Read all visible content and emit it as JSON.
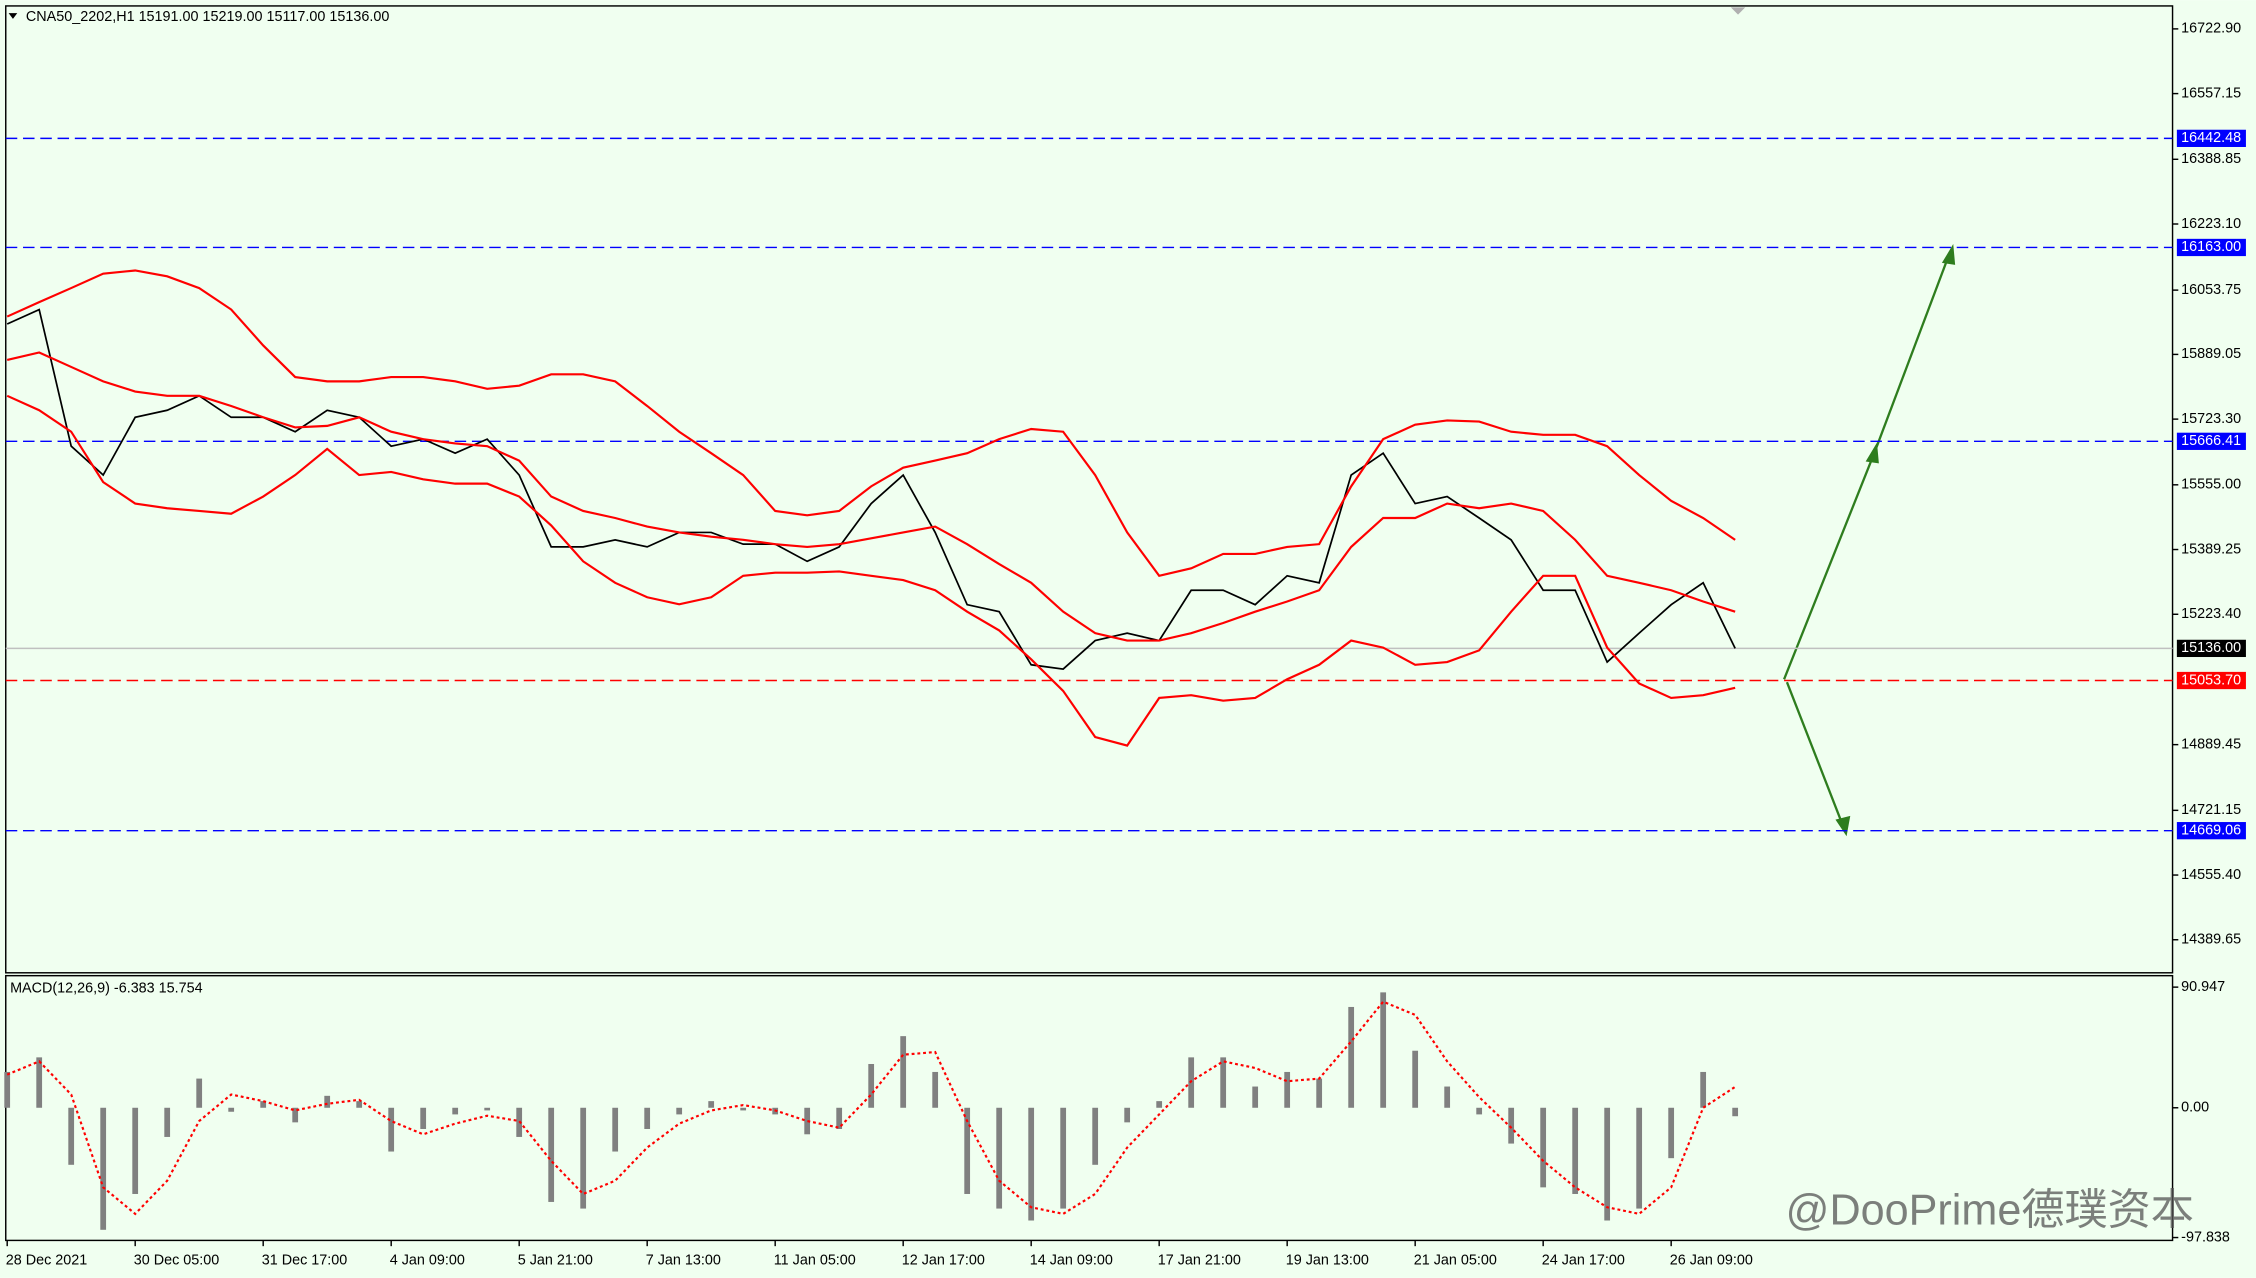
{
  "chart_data": [
    {
      "type": "line",
      "title": "CNA50_2202,H1  15191.00 15219.00 15117.00 15136.00",
      "categories": [
        "28 Dec 2021",
        null,
        null,
        null,
        "30 Dec 05:00",
        null,
        null,
        null,
        "31 Dec 17:00",
        null,
        null,
        null,
        "4 Jan 09:00",
        null,
        null,
        null,
        "5 Jan 21:00",
        null,
        null,
        null,
        "7 Jan 13:00",
        null,
        null,
        null,
        "11 Jan 05:00",
        null,
        null,
        null,
        "12 Jan 17:00",
        null,
        null,
        null,
        "14 Jan 09:00",
        null,
        null,
        null,
        "17 Jan 21:00",
        null,
        null,
        null,
        "19 Jan 13:00",
        null,
        null,
        null,
        "21 Jan 05:00",
        null,
        null,
        null,
        "24 Jan 17:00",
        null,
        null,
        null,
        "26 Jan 09:00",
        null,
        null
      ],
      "series": [
        {
          "color": "#000000",
          "dash": "solid",
          "values": [
            15967,
            16004,
            15654,
            15580,
            15728,
            15746,
            15783,
            15728,
            15728,
            15691,
            15746,
            15728,
            15654,
            15672,
            15636,
            15672,
            15580,
            15396,
            15396,
            15414,
            15396,
            15433,
            15433,
            15403,
            15403,
            15359,
            15396,
            15507,
            15580,
            15433,
            15248,
            15230,
            15094,
            15083,
            15156,
            15175,
            15156,
            15285,
            15285,
            15248,
            15322,
            15304,
            15580,
            15636,
            15507,
            15525,
            15470,
            15414,
            15285,
            15285,
            15101,
            15175,
            15248,
            15304,
            15136
          ]
        },
        {
          "color": "#ff0000",
          "dash": "solid",
          "values": [
            15986,
            16023,
            16059,
            16096,
            16104,
            16089,
            16059,
            16004,
            15912,
            15831,
            15820,
            15820,
            15831,
            15831,
            15820,
            15801,
            15809,
            15838,
            15838,
            15820,
            15757,
            15691,
            15636,
            15580,
            15488,
            15477,
            15488,
            15551,
            15599,
            15617,
            15636,
            15672,
            15698,
            15691,
            15580,
            15433,
            15322,
            15341,
            15378,
            15378,
            15396,
            15403,
            15551,
            15672,
            15709,
            15720,
            15717,
            15691,
            15683,
            15683,
            15654,
            15580,
            15514,
            15470,
            15414
          ]
        },
        {
          "color": "#ff0000",
          "dash": "solid",
          "values": [
            15875,
            15894,
            15857,
            15820,
            15794,
            15783,
            15783,
            15757,
            15728,
            15702,
            15706,
            15728,
            15691,
            15672,
            15661,
            15654,
            15617,
            15525,
            15488,
            15470,
            15448,
            15433,
            15422,
            15414,
            15403,
            15396,
            15403,
            15418,
            15433,
            15448,
            15403,
            15352,
            15304,
            15230,
            15175,
            15156,
            15156,
            15175,
            15201,
            15230,
            15256,
            15285,
            15396,
            15470,
            15470,
            15507,
            15495,
            15507,
            15488,
            15414,
            15322,
            15304,
            15285,
            15256,
            15230
          ]
        },
        {
          "color": "#ff0000",
          "dash": "solid",
          "values": [
            15783,
            15746,
            15691,
            15562,
            15507,
            15495,
            15488,
            15481,
            15525,
            15580,
            15647,
            15580,
            15588,
            15569,
            15558,
            15558,
            15525,
            15451,
            15359,
            15304,
            15267,
            15249,
            15267,
            15322,
            15330,
            15330,
            15333,
            15322,
            15311,
            15285,
            15230,
            15182,
            15108,
            15027,
            14909,
            14887,
            15009,
            15016,
            15002,
            15009,
            15057,
            15094,
            15156,
            15138,
            15094,
            15101,
            15131,
            15230,
            15322,
            15322,
            15138,
            15046,
            15009,
            15016,
            15035
          ]
        }
      ],
      "ylim": [
        14305,
        16778
      ],
      "yticks": [
        {
          "value": 16722.9,
          "label": "16722.90"
        },
        16557.15,
        16388.85,
        {
          "value": 16223.1,
          "label": "16223.10"
        },
        16053.75,
        15889.05,
        {
          "value": 15723.3,
          "label": "15723.30"
        },
        {
          "value": 15555,
          "label": "15555.00"
        },
        15389.25,
        {
          "value": 15223.4,
          "label": "15223.40"
        },
        14889.45,
        14721.15,
        {
          "value": 14555.4,
          "label": "14555.40"
        },
        14389.65
      ],
      "levels": [
        {
          "value": 16442.48,
          "color": "#0000ff",
          "line_color": "#0000ff",
          "dash": "dashed"
        },
        {
          "value": 16163,
          "label": "16163.00",
          "color": "#0000ff",
          "line_color": "#0000ff",
          "dash": "dashed"
        },
        {
          "value": 15666.41,
          "color": "#0000ff",
          "line_color": "#0000ff",
          "dash": "dashed"
        },
        {
          "value": 15136,
          "label": "15136.00",
          "color": "#000000",
          "line_color": "#c0c0c0",
          "dash": "solid"
        },
        {
          "value": 15053.7,
          "label": "15053.70",
          "color": "#ff0000",
          "line_color": "#ff0000",
          "dash": "dashed"
        },
        {
          "value": 14669.06,
          "color": "#0000ff",
          "line_color": "#0000ff",
          "dash": "dashed"
        }
      ]
    },
    {
      "type": "bar",
      "title": "MACD(12,26,9) -6.383 15.754",
      "series": [
        {
          "color": "#808080",
          "type": "bar",
          "values": [
            27,
            38,
            -43,
            -92,
            -65,
            -22,
            22,
            -3,
            5,
            -11,
            9,
            5,
            -33,
            -16,
            -5,
            -2,
            -22,
            -71,
            -76,
            -33,
            -16,
            -5,
            5,
            -2,
            -5,
            -20,
            -16,
            33,
            54,
            27,
            -65,
            -76,
            -85,
            -76,
            -43,
            -11,
            5,
            38,
            38,
            16,
            27,
            22,
            76,
            87,
            43,
            16,
            -5,
            -27,
            -60,
            -65,
            -85,
            -76,
            -38,
            27,
            -6.383
          ]
        },
        {
          "color": "#ff0000",
          "type": "line",
          "dash": "dotted",
          "values": [
            25,
            35,
            10,
            -60,
            -80,
            -55,
            -10,
            10,
            5,
            -2,
            3,
            6,
            -10,
            -20,
            -12,
            -6,
            -10,
            -40,
            -65,
            -55,
            -30,
            -12,
            -2,
            2,
            -2,
            -10,
            -15,
            10,
            40,
            42,
            -10,
            -55,
            -75,
            -80,
            -65,
            -30,
            -5,
            20,
            35,
            30,
            20,
            22,
            50,
            80,
            70,
            35,
            8,
            -15,
            -40,
            -60,
            -75,
            -80,
            -60,
            0,
            15.754
          ]
        }
      ],
      "ylim": [
        -100,
        98.5
      ],
      "yticks": [
        90.947,
        {
          "value": 0,
          "label": "0.00"
        },
        -97.838
      ]
    }
  ],
  "watermark": "@DooPrime德璞资本"
}
